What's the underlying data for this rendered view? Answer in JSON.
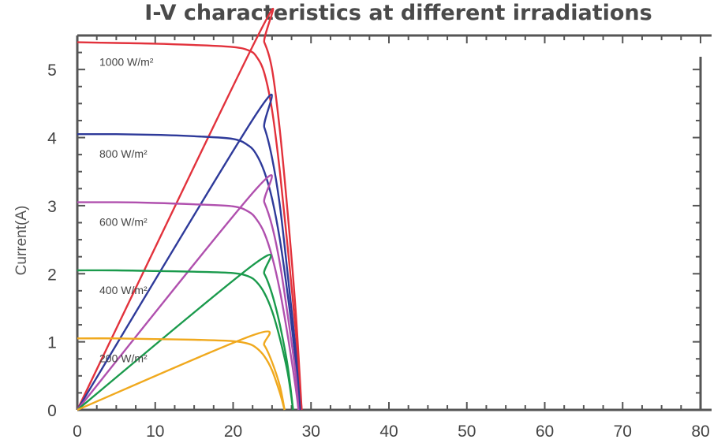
{
  "chart_data": {
    "type": "line",
    "title": "I-V characteristics at different irradiations",
    "xlabel": "",
    "ylabel": "Current(A)",
    "xlim": [
      0,
      80
    ],
    "ylim": [
      0,
      5.5
    ],
    "x_ticks": [
      0,
      10,
      20,
      30,
      40,
      50,
      60,
      70,
      80
    ],
    "y_ticks": [
      0,
      1,
      2,
      3,
      4,
      5
    ],
    "grid": false,
    "series": [
      {
        "name": "1000 W/m²",
        "color": "#e2323c",
        "iv_points": [
          [
            0,
            5.4
          ],
          [
            5,
            5.39
          ],
          [
            10,
            5.38
          ],
          [
            15,
            5.36
          ],
          [
            20,
            5.33
          ],
          [
            22,
            5.28
          ],
          [
            23,
            5.19
          ],
          [
            24,
            4.95
          ],
          [
            25,
            4.4
          ],
          [
            26,
            3.5
          ],
          [
            27,
            2.4
          ],
          [
            28,
            1.2
          ],
          [
            28.5,
            0.4
          ],
          [
            28.8,
            0
          ]
        ],
        "power_points": [
          [
            0,
            0
          ],
          [
            23.2,
            5.5
          ],
          [
            24,
            5.4
          ],
          [
            25,
            5.0
          ],
          [
            26,
            4.1
          ],
          [
            27,
            2.9
          ],
          [
            28,
            1.5
          ],
          [
            28.8,
            0
          ]
        ]
      },
      {
        "name": "800 W/m²",
        "color": "#2e3a9a",
        "iv_points": [
          [
            0,
            4.05
          ],
          [
            5,
            4.05
          ],
          [
            10,
            4.04
          ],
          [
            15,
            4.02
          ],
          [
            20,
            3.98
          ],
          [
            22,
            3.88
          ],
          [
            23,
            3.75
          ],
          [
            24,
            3.5
          ],
          [
            25,
            3.1
          ],
          [
            26,
            2.5
          ],
          [
            27,
            1.7
          ],
          [
            28,
            0.75
          ],
          [
            28.6,
            0
          ]
        ],
        "power_points": [
          [
            0,
            0
          ],
          [
            23,
            4.35
          ],
          [
            24,
            4.15
          ],
          [
            25,
            3.7
          ],
          [
            26,
            3.0
          ],
          [
            27,
            2.0
          ],
          [
            28,
            0.9
          ],
          [
            28.6,
            0
          ]
        ]
      },
      {
        "name": "600 W/m²",
        "color": "#b050ae",
        "iv_points": [
          [
            0,
            3.05
          ],
          [
            5,
            3.05
          ],
          [
            10,
            3.04
          ],
          [
            15,
            3.02
          ],
          [
            20,
            2.99
          ],
          [
            22,
            2.91
          ],
          [
            23,
            2.8
          ],
          [
            24,
            2.6
          ],
          [
            25,
            2.25
          ],
          [
            26,
            1.75
          ],
          [
            27,
            1.1
          ],
          [
            28,
            0.35
          ],
          [
            28.4,
            0
          ]
        ],
        "power_points": [
          [
            0,
            0
          ],
          [
            23,
            3.25
          ],
          [
            24,
            3.05
          ],
          [
            25,
            2.7
          ],
          [
            26,
            2.15
          ],
          [
            27,
            1.4
          ],
          [
            28,
            0.55
          ],
          [
            28.4,
            0
          ]
        ]
      },
      {
        "name": "400 W/m²",
        "color": "#1a9a4c",
        "iv_points": [
          [
            0,
            2.05
          ],
          [
            5,
            2.05
          ],
          [
            10,
            2.04
          ],
          [
            15,
            2.03
          ],
          [
            20,
            2.01
          ],
          [
            22,
            1.96
          ],
          [
            23,
            1.88
          ],
          [
            24,
            1.72
          ],
          [
            25,
            1.45
          ],
          [
            26,
            1.05
          ],
          [
            27,
            0.55
          ],
          [
            27.7,
            0
          ]
        ],
        "power_points": [
          [
            0,
            0
          ],
          [
            22.8,
            2.15
          ],
          [
            24,
            2.0
          ],
          [
            25,
            1.7
          ],
          [
            26,
            1.25
          ],
          [
            27,
            0.65
          ],
          [
            27.7,
            0
          ]
        ]
      },
      {
        "name": "200 W/m²",
        "color": "#f0a91e",
        "iv_points": [
          [
            0,
            1.05
          ],
          [
            5,
            1.05
          ],
          [
            10,
            1.04
          ],
          [
            15,
            1.03
          ],
          [
            20,
            1.01
          ],
          [
            22,
            0.97
          ],
          [
            23,
            0.91
          ],
          [
            24,
            0.79
          ],
          [
            25,
            0.58
          ],
          [
            26,
            0.25
          ],
          [
            26.6,
            0
          ]
        ],
        "power_points": [
          [
            0,
            0
          ],
          [
            22.6,
            1.1
          ],
          [
            24,
            0.95
          ],
          [
            25,
            0.7
          ],
          [
            26,
            0.35
          ],
          [
            26.6,
            0
          ]
        ]
      }
    ]
  }
}
